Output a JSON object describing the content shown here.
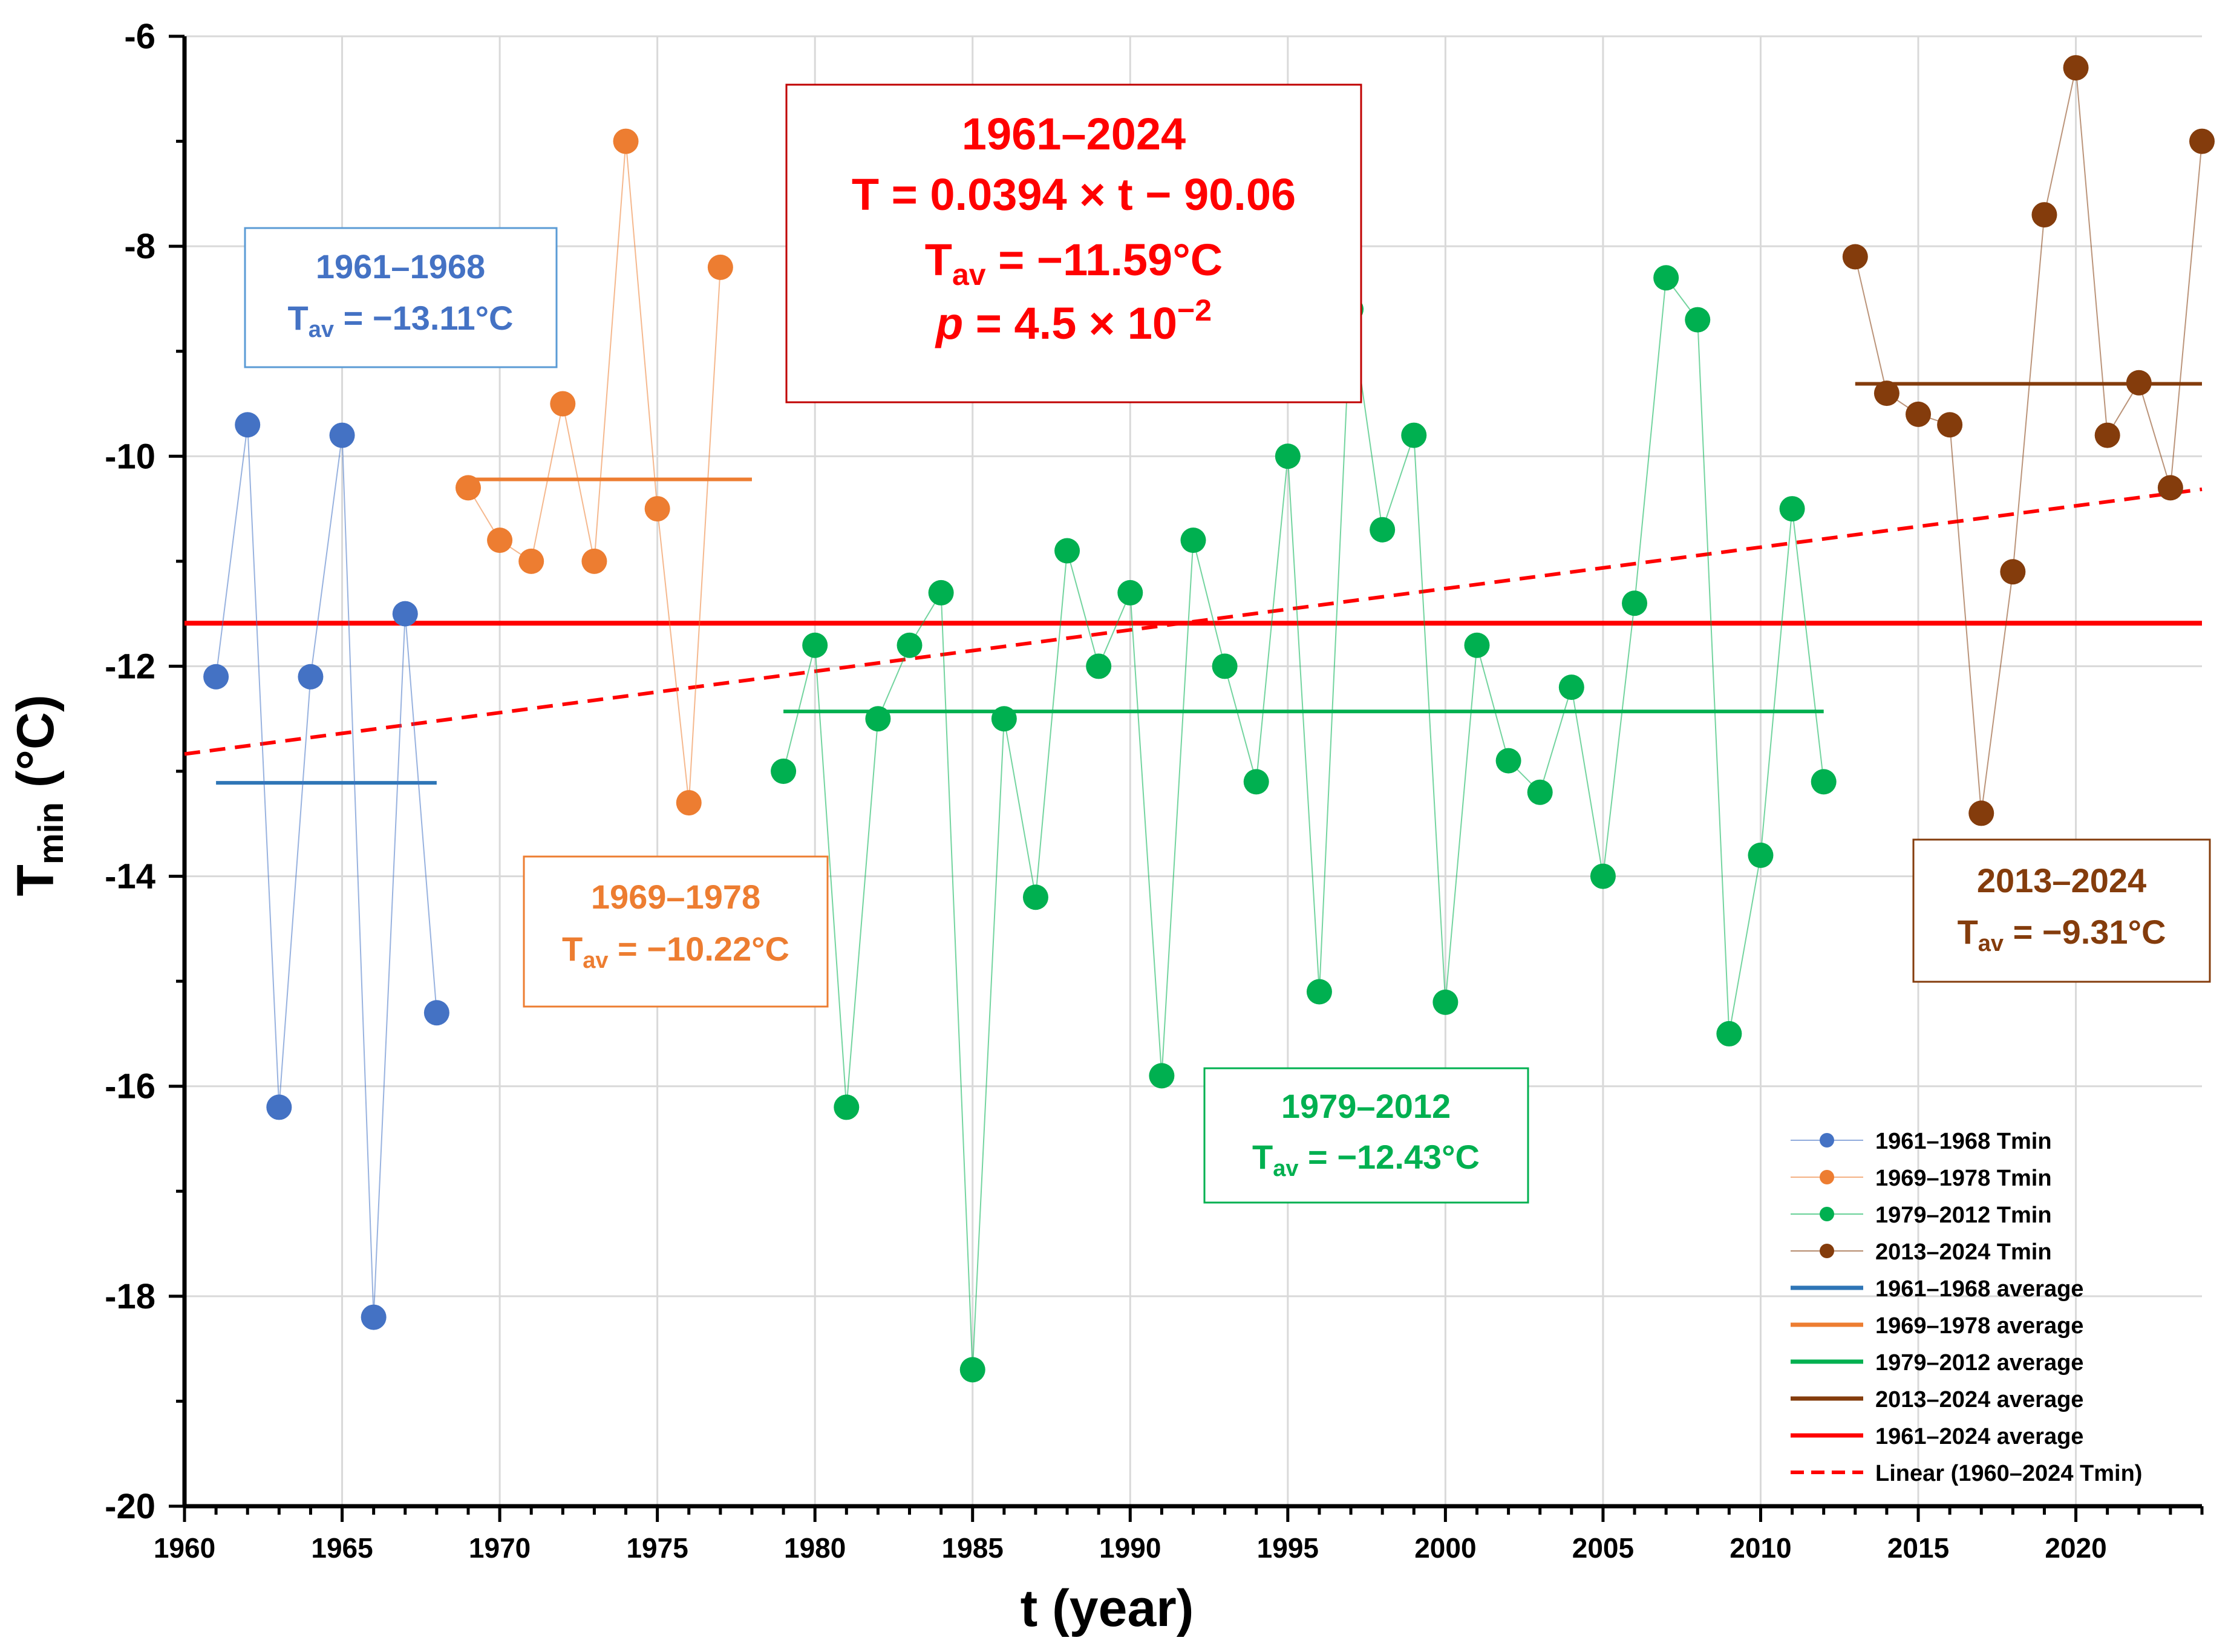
{
  "chart_data": {
    "type": "scatter",
    "title": "",
    "xlabel": "t (year)",
    "ylabel": {
      "main": "T",
      "sub": "min",
      "unit": " (°C)"
    },
    "xlim": [
      1960,
      2024
    ],
    "ylim": [
      -20,
      -6
    ],
    "xticks": [
      1960,
      1965,
      1970,
      1975,
      1980,
      1985,
      1990,
      1995,
      2000,
      2005,
      2010,
      2015,
      2020
    ],
    "yticks": [
      -20,
      -18,
      -16,
      -14,
      -12,
      -10,
      -8,
      -6
    ],
    "grid": true,
    "legend_position": "bottom-right",
    "series": [
      {
        "name": "1961–1968 Tmin",
        "color": "#4472C4",
        "x": [
          1961,
          1962,
          1963,
          1964,
          1965,
          1966,
          1967,
          1968
        ],
        "values": [
          -12.1,
          -9.7,
          -16.2,
          -12.1,
          -9.8,
          -18.2,
          -11.5,
          -15.3
        ]
      },
      {
        "name": "1969–1978 Tmin",
        "color": "#ED7D31",
        "x": [
          1969,
          1970,
          1971,
          1972,
          1973,
          1974,
          1975,
          1976,
          1977
        ],
        "values": [
          -10.3,
          -10.8,
          -11.0,
          -9.5,
          -11.0,
          -7.0,
          -10.5,
          -13.3,
          -8.2
        ]
      },
      {
        "name": "1979–2012 Tmin",
        "color": "#00B050",
        "x": [
          1979,
          1980,
          1981,
          1982,
          1983,
          1984,
          1985,
          1986,
          1987,
          1988,
          1989,
          1990,
          1991,
          1992,
          1993,
          1994,
          1995,
          1996,
          1997,
          1998,
          1999,
          2000,
          2001,
          2002,
          2003,
          2004,
          2005,
          2006,
          2007,
          2008,
          2009,
          2010,
          2011,
          2012
        ],
        "values": [
          -13.0,
          -11.8,
          -16.2,
          -12.5,
          -11.8,
          -11.3,
          -18.7,
          -12.5,
          -14.2,
          -10.9,
          -12.0,
          -11.3,
          -15.9,
          -10.8,
          -12.0,
          -13.1,
          -10.0,
          -15.1,
          -8.6,
          -10.7,
          -9.8,
          -15.2,
          -11.8,
          -12.9,
          -13.2,
          -12.2,
          -14.0,
          -11.4,
          -8.3,
          -8.7,
          -15.5,
          -13.8,
          -10.5,
          -13.1
        ]
      },
      {
        "name": "2013–2024 Tmin",
        "color": "#843C0C",
        "x": [
          2013,
          2014,
          2015,
          2016,
          2017,
          2018,
          2019,
          2020,
          2021,
          2022,
          2023,
          2024
        ],
        "values": [
          -8.1,
          -9.4,
          -9.6,
          -9.7,
          -13.4,
          -11.1,
          -7.7,
          -6.3,
          -9.8,
          -9.3,
          -10.3,
          -7.0
        ]
      }
    ],
    "averages": [
      {
        "name": "1961–1968 average",
        "color": "#2E75B6",
        "x": [
          1961,
          1968
        ],
        "value": -13.11
      },
      {
        "name": "1969–1978 average",
        "color": "#ED7D31",
        "x": [
          1969,
          1978
        ],
        "value": -10.22
      },
      {
        "name": "1979–2012 average",
        "color": "#00B050",
        "x": [
          1979,
          2012
        ],
        "value": -12.43
      },
      {
        "name": "2013–2024 average",
        "color": "#843C0C",
        "x": [
          2013,
          2024
        ],
        "value": -9.31
      },
      {
        "name": "1961–2024 average",
        "color": "#FF0000",
        "x": [
          1960,
          2024
        ],
        "value": -11.59
      }
    ],
    "trend": {
      "name": "Linear (1960–2024 Tmin)",
      "color": "#FF0000",
      "slope": 0.0394,
      "intercept": -90.06,
      "x": [
        1960,
        2024
      ]
    },
    "annotations": [
      {
        "id": "a1961",
        "color": "#4472C4",
        "period": "1961–1968",
        "tav_main": "T",
        "tav_sub": "av",
        "tav_value": " = −13.11°C"
      },
      {
        "id": "a1969",
        "color": "#ED7D31",
        "period": "1969–1978",
        "tav_main": "T",
        "tav_sub": "av",
        "tav_value": " = −10.22°C"
      },
      {
        "id": "a1979",
        "color": "#00B050",
        "period": "1979–2012",
        "tav_main": "T",
        "tav_sub": "av",
        "tav_value": " = −12.43°C"
      },
      {
        "id": "a2013",
        "color": "#843C0C",
        "period": "2013–2024",
        "tav_main": "T",
        "tav_sub": "av",
        "tav_value": " = −9.31°C"
      }
    ],
    "main_annotation": {
      "color": "#FF0000",
      "period": "1961–2024",
      "equation": "T = 0.0394 × t − 90.06",
      "tav_main": "T",
      "tav_sub": "av",
      "tav_value": " = −11.59°C",
      "p_symbol": "p",
      "p_value": " = 4.5 × 10",
      "p_exp": "−2"
    }
  }
}
